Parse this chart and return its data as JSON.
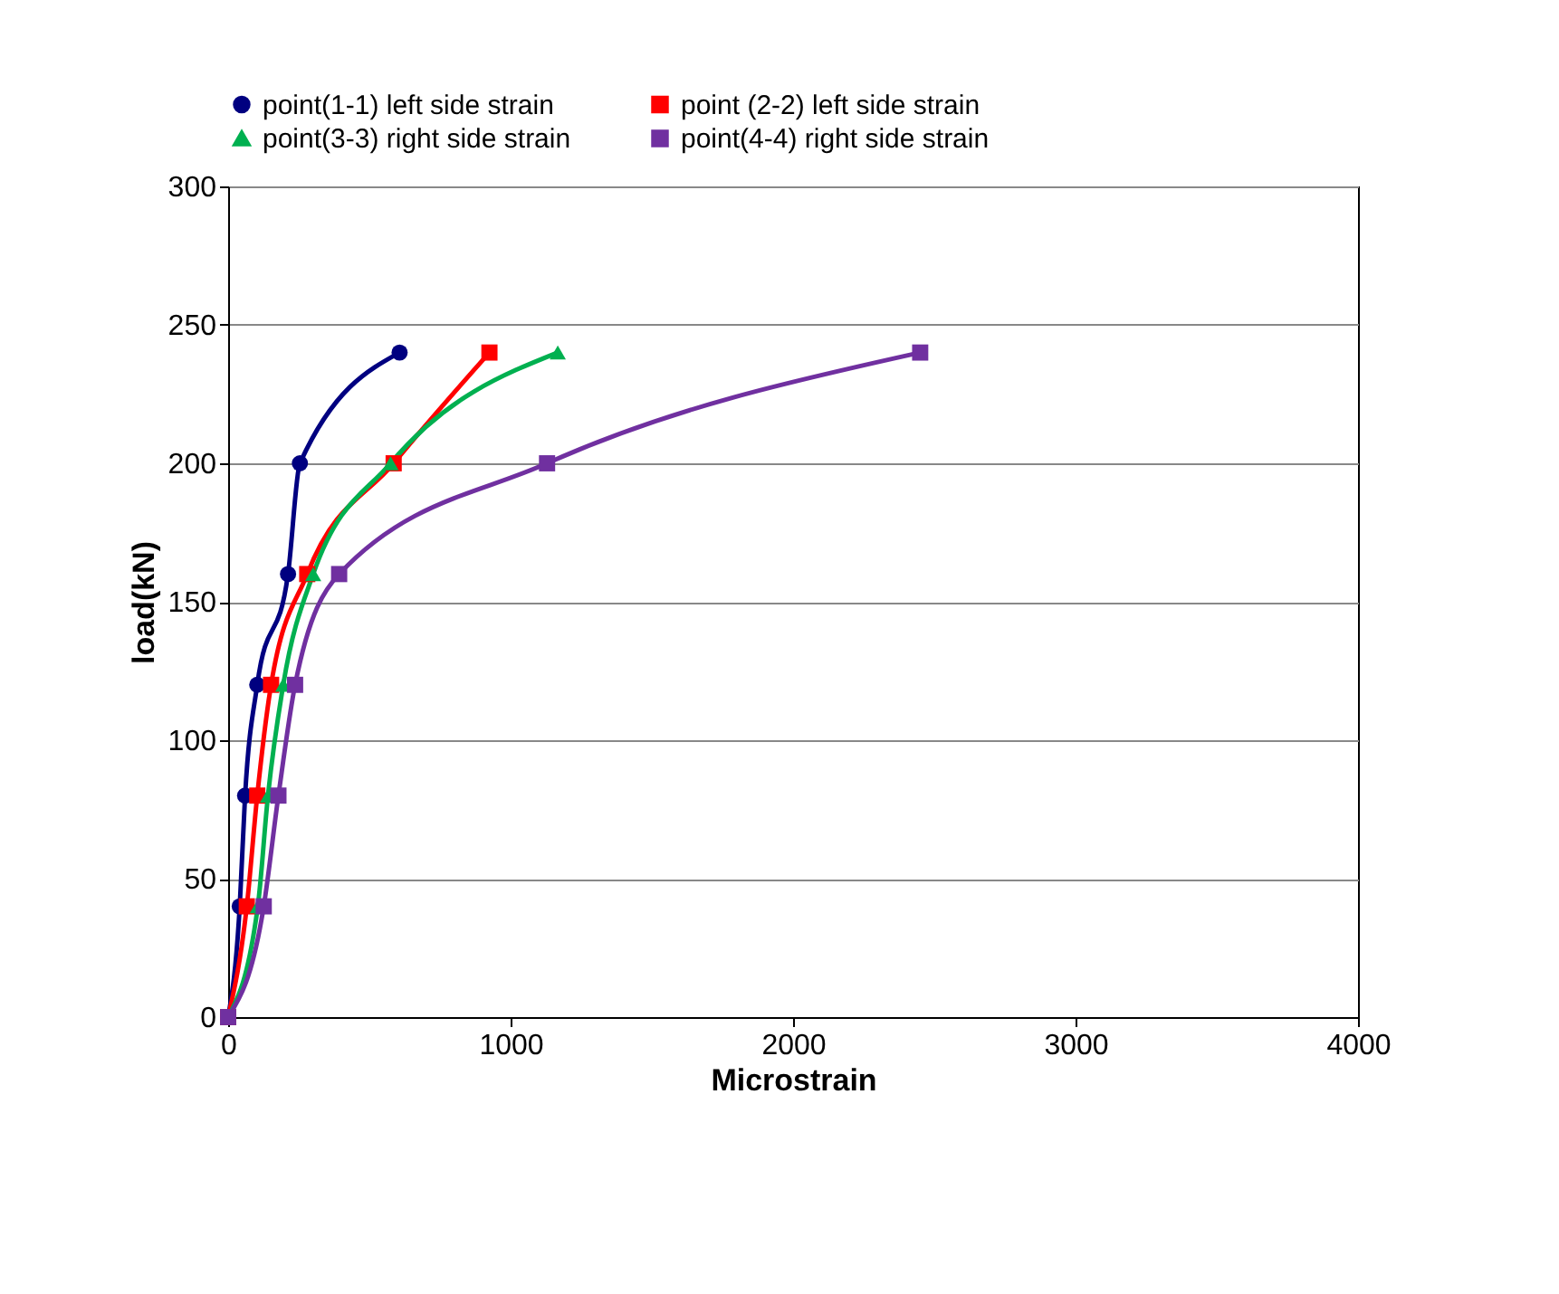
{
  "chart_data": {
    "type": "line",
    "xlabel": "Microstrain",
    "ylabel": "load(kN)",
    "xlim": [
      0,
      4000
    ],
    "xticks": [
      0,
      1000,
      2000,
      3000,
      4000
    ],
    "ylim": [
      0,
      300
    ],
    "yticks": [
      0,
      50,
      100,
      150,
      200,
      250,
      300
    ],
    "grid": "y",
    "legend": "top",
    "series": [
      {
        "name": "point(1-1) left side strain",
        "color": "#000080",
        "marker": "circle",
        "x": [
          0,
          41,
          60,
          103,
          212,
          254,
          607
        ],
        "values": [
          0,
          40,
          80,
          120,
          160,
          200,
          240
        ]
      },
      {
        "name": "point (2-2) left side strain",
        "color": "#ff0000",
        "marker": "square",
        "x": [
          0,
          66,
          103,
          152,
          280,
          586,
          925
        ],
        "values": [
          0,
          40,
          80,
          120,
          160,
          200,
          240
        ]
      },
      {
        "name": "point(3-3) right side strain",
        "color": "#00b050",
        "marker": "triangle",
        "x": [
          0,
          105,
          141,
          195,
          301,
          575,
          1167
        ],
        "values": [
          0,
          40,
          80,
          120,
          160,
          200,
          240
        ]
      },
      {
        "name": "point(4-4) right side strain",
        "color": "#7030a0",
        "marker": "square",
        "x": [
          0,
          126,
          178,
          237,
          393,
          1129,
          2450
        ],
        "values": [
          0,
          40,
          80,
          120,
          160,
          200,
          240
        ]
      }
    ]
  }
}
